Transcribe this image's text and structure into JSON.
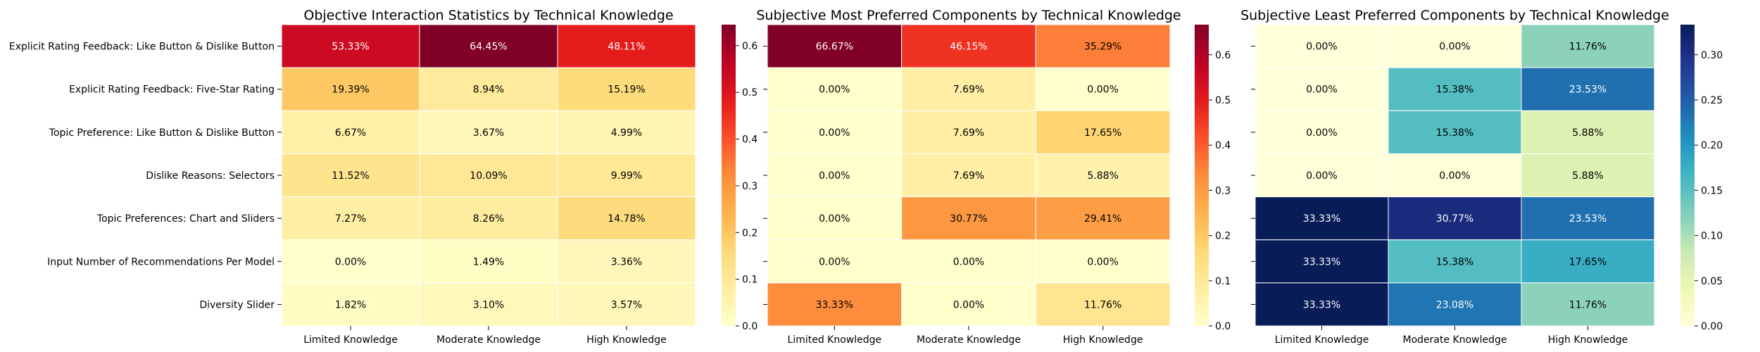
{
  "chart_data": [
    {
      "type": "heatmap",
      "title": "Objective Interaction Statistics by Technical Knowledge",
      "colormap": "YlOrRd",
      "vmin": 0,
      "vmax": 0.645,
      "colorbar_ticks": [
        "0.0",
        "0.1",
        "0.2",
        "0.3",
        "0.4",
        "0.5",
        "0.6"
      ],
      "columns": [
        "Limited Knowledge",
        "Moderate Knowledge",
        "High Knowledge"
      ],
      "rows": [
        "Explicit Rating Feedback: Like Button & Dislike Button",
        "Explicit Rating Feedback: Five-Star Rating",
        "Topic Preference: Like Button & Dislike Button",
        "Dislike Reasons: Selectors",
        "Topic Preferences: Chart and Sliders",
        "Input Number of Recommendations Per Model",
        "Diversity Slider"
      ],
      "values": [
        [
          0.5333,
          0.6445,
          0.4811
        ],
        [
          0.1939,
          0.0894,
          0.1519
        ],
        [
          0.0667,
          0.0367,
          0.0499
        ],
        [
          0.1152,
          0.1009,
          0.0999
        ],
        [
          0.0727,
          0.0826,
          0.1478
        ],
        [
          0.0,
          0.0149,
          0.0336
        ],
        [
          0.0182,
          0.031,
          0.0357
        ]
      ],
      "labels": [
        [
          "53.33%",
          "64.45%",
          "48.11%"
        ],
        [
          "19.39%",
          "8.94%",
          "15.19%"
        ],
        [
          "6.67%",
          "3.67%",
          "4.99%"
        ],
        [
          "11.52%",
          "10.09%",
          "9.99%"
        ],
        [
          "7.27%",
          "8.26%",
          "14.78%"
        ],
        [
          "0.00%",
          "1.49%",
          "3.36%"
        ],
        [
          "1.82%",
          "3.10%",
          "3.57%"
        ]
      ]
    },
    {
      "type": "heatmap",
      "title": "Subjective Most Preferred Components by Technical Knowledge",
      "colormap": "YlOrRd",
      "vmin": 0,
      "vmax": 0.6667,
      "colorbar_ticks": [
        "0.0",
        "0.1",
        "0.2",
        "0.3",
        "0.4",
        "0.5",
        "0.6"
      ],
      "columns": [
        "Limited Knowledge",
        "Moderate Knowledge",
        "High Knowledge"
      ],
      "rows": [],
      "values": [
        [
          0.6667,
          0.4615,
          0.3529
        ],
        [
          0.0,
          0.0769,
          0.0
        ],
        [
          0.0,
          0.0769,
          0.1765
        ],
        [
          0.0,
          0.0769,
          0.0588
        ],
        [
          0.0,
          0.3077,
          0.2941
        ],
        [
          0.0,
          0.0,
          0.0
        ],
        [
          0.3333,
          0.0,
          0.1176
        ]
      ],
      "labels": [
        [
          "66.67%",
          "46.15%",
          "35.29%"
        ],
        [
          "0.00%",
          "7.69%",
          "0.00%"
        ],
        [
          "0.00%",
          "7.69%",
          "17.65%"
        ],
        [
          "0.00%",
          "7.69%",
          "5.88%"
        ],
        [
          "0.00%",
          "30.77%",
          "29.41%"
        ],
        [
          "0.00%",
          "0.00%",
          "0.00%"
        ],
        [
          "33.33%",
          "0.00%",
          "11.76%"
        ]
      ]
    },
    {
      "type": "heatmap",
      "title": "Subjective Least Preferred Components by Technical Knowledge",
      "colormap": "YlGnBu",
      "vmin": 0,
      "vmax": 0.3333,
      "colorbar_ticks": [
        "0.00",
        "0.05",
        "0.10",
        "0.15",
        "0.20",
        "0.25",
        "0.30"
      ],
      "columns": [
        "Limited Knowledge",
        "Moderate Knowledge",
        "High Knowledge"
      ],
      "rows": [],
      "values": [
        [
          0.0,
          0.0,
          0.1176
        ],
        [
          0.0,
          0.1538,
          0.2353
        ],
        [
          0.0,
          0.1538,
          0.0588
        ],
        [
          0.0,
          0.0,
          0.0588
        ],
        [
          0.3333,
          0.3077,
          0.2353
        ],
        [
          0.3333,
          0.1538,
          0.1765
        ],
        [
          0.3333,
          0.2308,
          0.1176
        ]
      ],
      "labels": [
        [
          "0.00%",
          "0.00%",
          "11.76%"
        ],
        [
          "0.00%",
          "15.38%",
          "23.53%"
        ],
        [
          "0.00%",
          "15.38%",
          "5.88%"
        ],
        [
          "0.00%",
          "0.00%",
          "5.88%"
        ],
        [
          "33.33%",
          "30.77%",
          "23.53%"
        ],
        [
          "33.33%",
          "15.38%",
          "17.65%"
        ],
        [
          "33.33%",
          "23.08%",
          "11.76%"
        ]
      ]
    }
  ]
}
